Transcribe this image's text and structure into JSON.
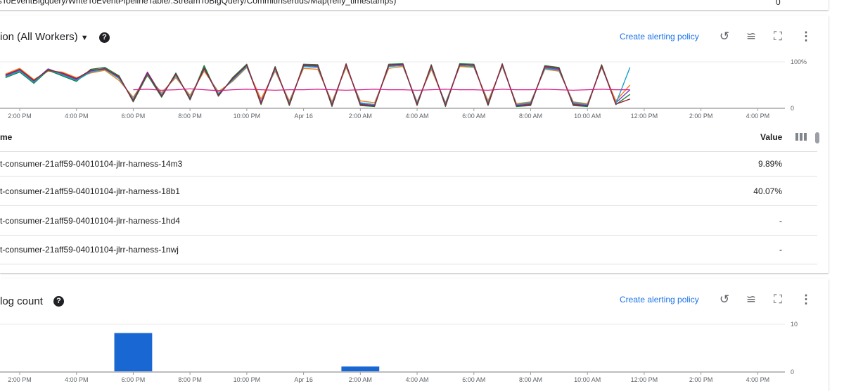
{
  "top_card": {
    "cropped_text": "nsToEventBigquery/WriteToEventPipelineTable/.StreamToBigQuery/CommitInsertIds/Map(reify_timestamps)",
    "value": "0"
  },
  "cpu_card": {
    "title": "ion (All Workers)",
    "help_icon": "help-circle-icon",
    "create_alert": "Create alerting policy",
    "icons": [
      "zoom-reset-icon",
      "legend-toggle-icon",
      "fullscreen-icon",
      "more-vert-icon"
    ],
    "table": {
      "name_header": "me",
      "value_header": "Value",
      "rows": [
        {
          "name": "t-consumer-21aff59-04010104-jlrr-harness-14m3",
          "value": "9.89%"
        },
        {
          "name": "t-consumer-21aff59-04010104-jlrr-harness-18b1",
          "value": "40.07%"
        },
        {
          "name": "t-consumer-21aff59-04010104-jlrr-harness-1hd4",
          "value": "-"
        },
        {
          "name": "t-consumer-21aff59-04010104-jlrr-harness-1nwj",
          "value": "-"
        }
      ]
    }
  },
  "log_card": {
    "title": "log count",
    "help_icon": "help-circle-icon",
    "create_alert": "Create alerting policy",
    "icons": [
      "zoom-reset-icon",
      "legend-toggle-icon",
      "fullscreen-icon",
      "more-vert-icon"
    ]
  },
  "x_ticks": [
    "2:00 PM",
    "4:00 PM",
    "6:00 PM",
    "8:00 PM",
    "10:00 PM",
    "Apr 16",
    "2:00 AM",
    "4:00 AM",
    "6:00 AM",
    "8:00 AM",
    "10:00 AM",
    "12:00 PM",
    "2:00 PM",
    "4:00 PM"
  ],
  "chart_data": [
    {
      "type": "line",
      "y_ticks": [
        "0",
        "100%"
      ],
      "ylim": [
        0,
        100
      ],
      "x": [
        "Apr 15 1:30 PM",
        "2:00 PM",
        "2:30 PM",
        "3:00 PM",
        "3:30 PM",
        "4:00 PM",
        "4:30 PM",
        "5:00 PM",
        "5:30 PM",
        "6:00 PM",
        "6:30 PM",
        "7:00 PM",
        "7:30 PM",
        "8:00 PM",
        "8:30 PM",
        "9:00 PM",
        "9:30 PM",
        "10:00 PM",
        "10:30 PM",
        "11:00 PM",
        "11:30 PM",
        "Apr 16 12:00 AM",
        "12:30 AM",
        "1:00 AM",
        "1:30 AM",
        "2:00 AM",
        "2:30 AM",
        "3:00 AM",
        "3:30 AM",
        "4:00 AM",
        "4:30 AM",
        "5:00 AM",
        "5:30 AM",
        "6:00 AM",
        "6:30 AM",
        "7:00 AM",
        "7:30 AM",
        "8:00 AM",
        "8:30 AM",
        "9:00 AM",
        "9:30 AM",
        "10:00 AM",
        "10:30 AM",
        "11:00 AM",
        "11:30 AM"
      ],
      "series": [
        {
          "color": "#7b3fbf",
          "values": [
            70,
            82,
            58,
            85,
            74,
            62,
            80,
            86,
            66,
            18,
            78,
            28,
            72,
            22,
            88,
            30,
            62,
            92,
            14,
            86,
            10,
            92,
            90,
            8,
            94,
            10,
            6,
            92,
            94,
            10,
            90,
            8,
            95,
            92,
            10,
            94,
            6,
            10,
            88,
            84,
            10,
            6,
            92,
            12,
            40
          ]
        },
        {
          "color": "#f4801f",
          "values": [
            74,
            86,
            62,
            80,
            78,
            66,
            76,
            82,
            60,
            24,
            70,
            34,
            66,
            28,
            80,
            36,
            58,
            88,
            20,
            80,
            16,
            86,
            84,
            14,
            88,
            16,
            12,
            86,
            90,
            14,
            84,
            12,
            90,
            88,
            16,
            90,
            10,
            14,
            84,
            80,
            14,
            10,
            88,
            16,
            50
          ]
        },
        {
          "color": "#188038",
          "values": [
            66,
            78,
            54,
            82,
            70,
            58,
            84,
            88,
            70,
            14,
            72,
            24,
            76,
            18,
            92,
            26,
            66,
            95,
            8,
            90,
            6,
            95,
            94,
            4,
            96,
            6,
            4,
            95,
            96,
            6,
            94,
            4,
            96,
            95,
            6,
            96,
            4,
            6,
            92,
            88,
            6,
            4,
            94,
            8,
            30
          ]
        },
        {
          "color": "#12a4c9",
          "values": [
            68,
            80,
            56,
            84,
            72,
            60,
            78,
            84,
            64,
            20,
            74,
            30,
            70,
            24,
            84,
            32,
            60,
            90,
            12,
            84,
            12,
            90,
            88,
            10,
            92,
            12,
            8,
            90,
            92,
            12,
            88,
            10,
            92,
            90,
            12,
            92,
            8,
            12,
            86,
            82,
            12,
            8,
            90,
            10,
            88
          ]
        },
        {
          "color": "#9c1c3b",
          "values": [
            72,
            84,
            60,
            83,
            76,
            64,
            82,
            85,
            68,
            16,
            76,
            26,
            74,
            20,
            86,
            28,
            64,
            93,
            10,
            88,
            8,
            93,
            92,
            6,
            95,
            8,
            5,
            93,
            95,
            8,
            92,
            6,
            94,
            93,
            8,
            95,
            5,
            8,
            90,
            86,
            8,
            5,
            92,
            9,
            20
          ]
        },
        {
          "color": "#d81b88",
          "values": [
            null,
            null,
            null,
            null,
            null,
            null,
            null,
            null,
            null,
            40,
            41,
            39,
            40,
            42,
            40,
            38,
            40,
            41,
            40,
            39,
            40,
            40,
            41,
            40,
            39,
            40,
            41,
            40,
            40,
            39,
            40,
            41,
            40,
            40,
            39,
            41,
            40,
            40,
            41,
            40,
            39,
            40,
            41,
            40,
            40
          ]
        }
      ]
    },
    {
      "type": "bar",
      "y_ticks": [
        "0",
        "10"
      ],
      "ylim": [
        0,
        10
      ],
      "bars": [
        {
          "start": "Apr 15 5:20 PM",
          "end": "Apr 15 6:40 PM",
          "value": 8
        },
        {
          "start": "Apr 16 1:20 AM",
          "end": "Apr 16 2:40 AM",
          "value": 1
        }
      ],
      "color": "#1967d2"
    }
  ]
}
